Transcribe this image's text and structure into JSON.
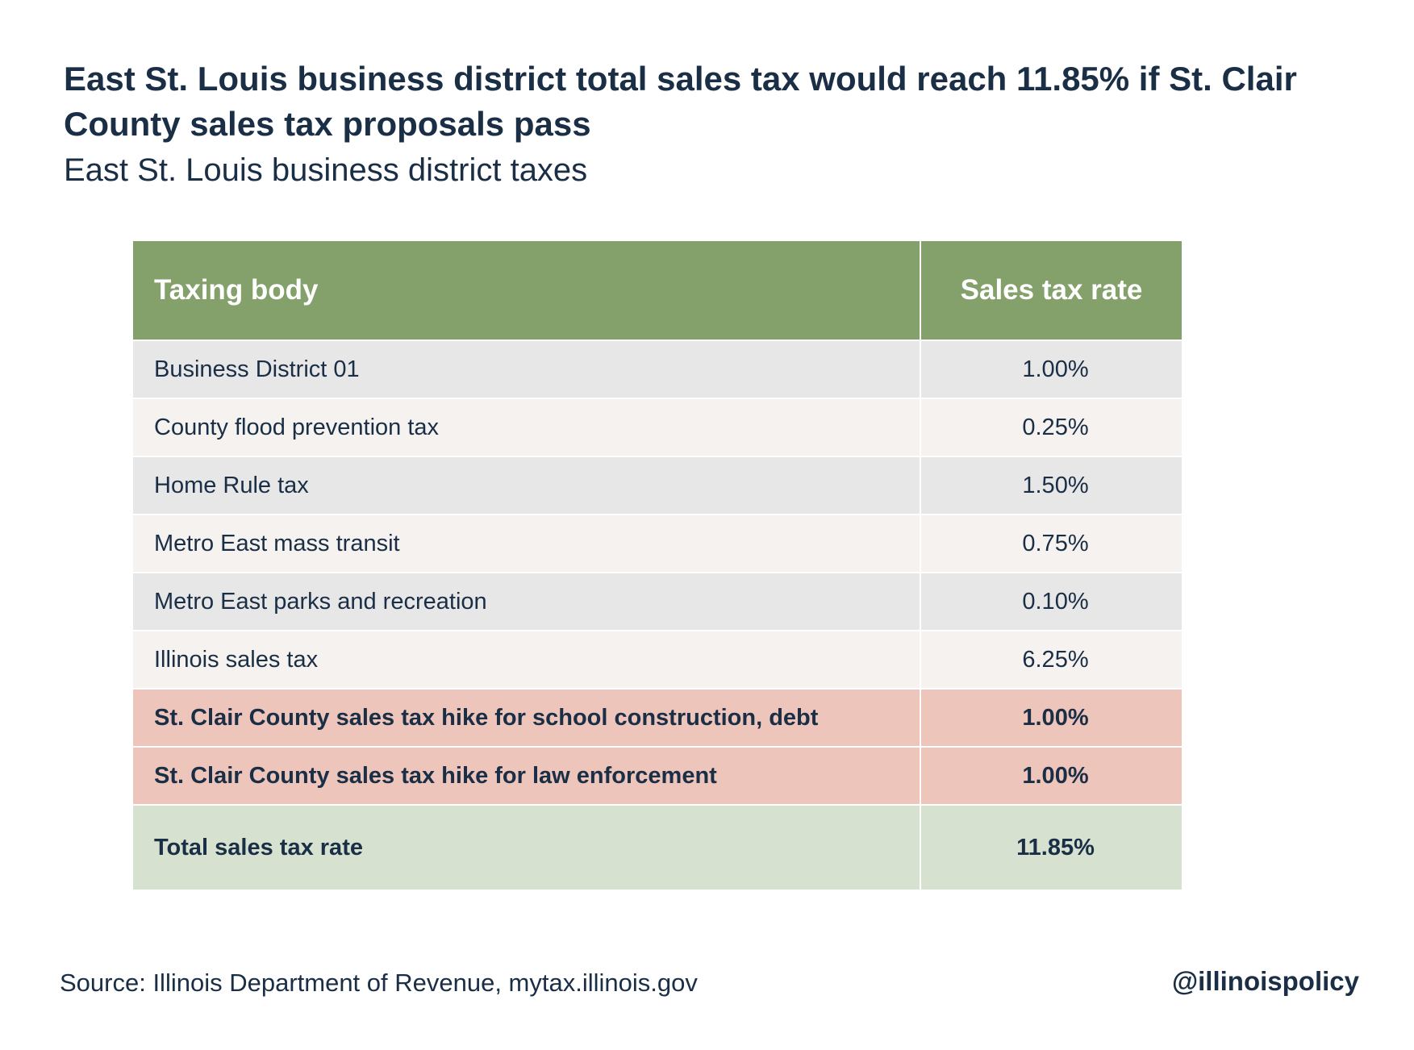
{
  "title": "East St. Louis business district total sales tax would reach 11.85% if St. Clair County sales tax proposals pass",
  "subtitle": "East St. Louis business district taxes",
  "table": {
    "headers": [
      "Taxing body",
      "Sales tax rate"
    ],
    "rows": [
      {
        "name": "Business District 01",
        "rate": "1.00%"
      },
      {
        "name": "County flood prevention tax",
        "rate": "0.25%"
      },
      {
        "name": "Home Rule tax",
        "rate": "1.50%"
      },
      {
        "name": "Metro East mass transit",
        "rate": "0.75%"
      },
      {
        "name": "Metro East parks and recreation",
        "rate": "0.10%"
      },
      {
        "name": "Illinois sales tax",
        "rate": "6.25%"
      },
      {
        "name": "St. Clair County sales tax hike for school construction, debt",
        "rate": "1.00%"
      },
      {
        "name": "St. Clair County sales tax hike for law enforcement",
        "rate": "1.00%"
      }
    ],
    "total": {
      "name": "Total sales tax rate",
      "rate": "11.85%"
    }
  },
  "colors": {
    "header_green": "#84a06b",
    "row_gray": "#e8e7e8",
    "row_cream": "#f5f2ef",
    "row_highlight_pink": "#edc5bb",
    "total_green": "#d6e1d0",
    "text_navy": "#1a2e45"
  },
  "footer": {
    "source": "Source: Illinois Department of Revenue, mytax.illinois.gov",
    "handle": "@illinoispolicy"
  }
}
